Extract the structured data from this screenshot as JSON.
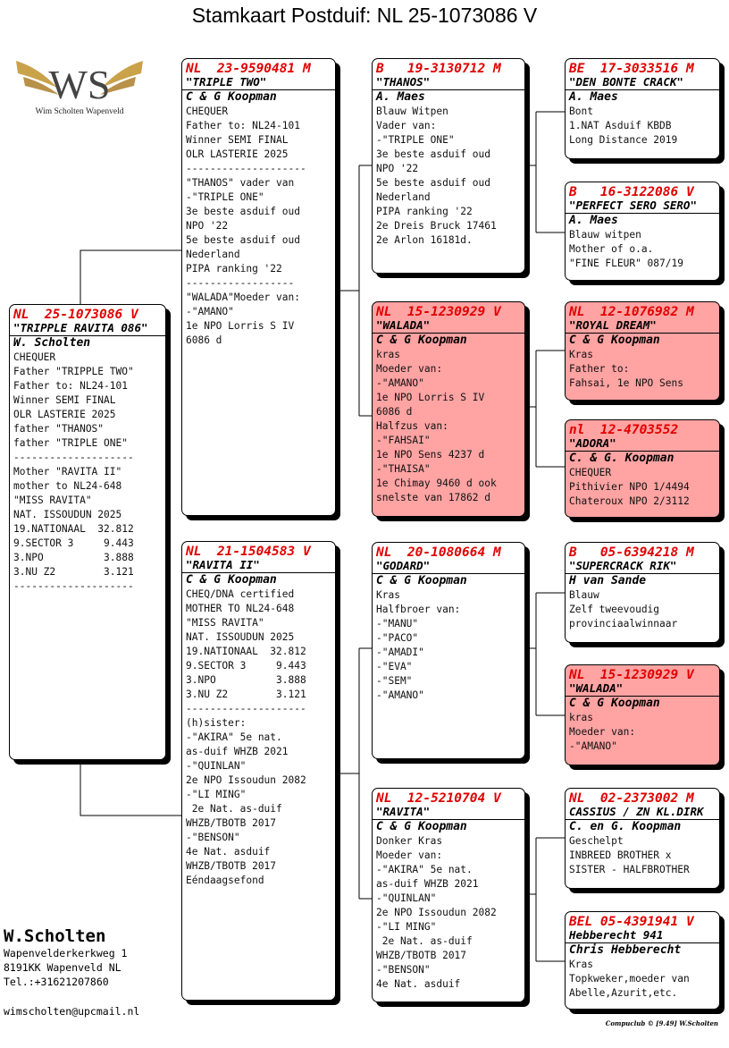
{
  "title": "Stamkaart Postduif: NL  25-1073086 V",
  "logo": {
    "text": "WS",
    "caption": "Wim Scholten Wapenveld",
    "colors": {
      "gold": "#c9a24a",
      "steel": "#555555"
    }
  },
  "owner": {
    "name": "W.Scholten",
    "address": [
      "Wapenvelderkerkweg 1",
      "8191KK  Wapenveld NL",
      "Tel.:+31621207860"
    ],
    "email": "wimscholten@upcmail.nl"
  },
  "footer": "Compuclub © [9.49]  W.Scholten",
  "colors": {
    "ring": "#e00000",
    "highlight": "#ffa3a3"
  },
  "pigeons": [
    {
      "id": "subject",
      "highlight": false,
      "ring": "NL  25-1073086 V",
      "name": "\"TRIPPLE RAVITA 086\"",
      "breeder": "W. Scholten",
      "lines": [
        "CHEQUER",
        "Father \"TRIPPLE TWO\"",
        "Father to: NL24-101",
        "Winner SEMI FINAL",
        "OLR LASTERIE 2025",
        "father \"THANOS\"",
        "father \"TRIPLE ONE\"",
        "--------------------",
        "Mother \"RAVITA II\"",
        "mother to NL24-648",
        "\"MISS RAVITA\"",
        "NAT. ISSOUDUN 2025",
        "19.NATIONAAL  32.812",
        "9.SECTOR 3     9.443",
        "3.NPO          3.888",
        "3.NU Z2        3.121",
        "--------------------"
      ]
    },
    {
      "id": "father",
      "highlight": false,
      "ring": "NL  23-9590481 M",
      "name": "\"TRIPLE TWO\"",
      "breeder": "C & G Koopman",
      "lines": [
        "CHEQUER",
        "Father to: NL24-101",
        "Winner SEMI FINAL",
        "OLR LASTERIE 2025",
        "--------------------",
        "\"THANOS\" vader van",
        "-\"TRIPLE ONE\"",
        "3e beste asduif oud",
        "NPO '22",
        "5e beste asduif oud",
        "Nederland",
        "PIPA ranking '22",
        "------------------",
        "\"WALADA\"Moeder van:",
        "-\"AMANO\"",
        "1e NPO Lorris S IV",
        "6086 d"
      ]
    },
    {
      "id": "mother",
      "highlight": false,
      "ring": "NL  21-1504583 V",
      "name": "\"RAVITA II\"",
      "breeder": "C & G Koopman",
      "lines": [
        "CHEQ/DNA certified",
        "MOTHER TO NL24-648",
        "\"MISS RAVITA\"",
        "NAT. ISSOUDUN 2025",
        "19.NATIONAAL  32.812",
        "9.SECTOR 3     9.443",
        "3.NPO          3.888",
        "3.NU Z2        3.121",
        "--------------------",
        "(h)sister:",
        "-\"AKIRA\" 5e nat.",
        "as-duif WHZB 2021",
        "-\"QUINLAN\"",
        "2e NPO Issoudun 2082",
        "-\"LI MING\"",
        " 2e Nat. as-duif",
        "WHZB/TBOTB 2017",
        "-\"BENSON\"",
        "4e Nat. asduif",
        "WHZB/TBOTB 2017",
        "Eéndaagsefond"
      ]
    },
    {
      "id": "ff",
      "highlight": false,
      "ring": "B   19-3130712 M",
      "name": "\"THANOS\"",
      "breeder": "A. Maes",
      "lines": [
        "Blauw Witpen",
        "Vader van:",
        "-\"TRIPLE ONE\"",
        "3e beste asduif oud",
        "NPO '22",
        "5e beste asduif oud",
        "Nederland",
        "PIPA ranking '22",
        "2e Dreis Bruck 17461",
        "2e Arlon 16181d."
      ]
    },
    {
      "id": "fm",
      "highlight": true,
      "ring": "NL  15-1230929 V",
      "name": "\"WALADA\"",
      "breeder": "C & G Koopman",
      "lines": [
        "kras",
        "Moeder van:",
        "-\"AMANO\"",
        "1e NPO Lorris S IV",
        "6086 d",
        "Halfzus van:",
        "-\"FAHSAI\"",
        "1e NPO Sens 4237 d",
        "-\"THAISA\"",
        "1e Chimay 9460 d ook",
        "snelste van 17862 d"
      ]
    },
    {
      "id": "mf",
      "highlight": false,
      "ring": "NL  20-1080664 M",
      "name": "\"GODARD\"",
      "breeder": "C & G Koopman",
      "lines": [
        "Kras",
        "Halfbroer van:",
        "-\"MANU\"",
        "-\"PACO\"",
        "-\"AMADI\"",
        "-\"EVA\"",
        "-\"SEM\"",
        "-\"AMANO\""
      ]
    },
    {
      "id": "mm",
      "highlight": false,
      "ring": "NL  12-5210704 V",
      "name": "\"RAVITA\"",
      "breeder": "C & G Koopman",
      "lines": [
        "Donker Kras",
        "Moeder van:",
        "-\"AKIRA\" 5e nat.",
        "as-duif WHZB 2021",
        "-\"QUINLAN\"",
        "2e NPO Issoudun 2082",
        "-\"LI MING\"",
        " 2e Nat. as-duif",
        "WHZB/TBOTB 2017",
        "-\"BENSON\"",
        "4e Nat. asduif"
      ]
    },
    {
      "id": "fff",
      "highlight": false,
      "ring": "BE  17-3033516 M",
      "name": "\"DEN BONTE CRACK\"",
      "breeder": "A. Maes",
      "lines": [
        "Bont",
        "1.NAT Asduif KBDB",
        "Long Distance 2019"
      ]
    },
    {
      "id": "ffm",
      "highlight": false,
      "ring": "B   16-3122086 V",
      "name": "\"PERFECT SERO SERO\"",
      "breeder": "A. Maes",
      "lines": [
        "Blauw witpen",
        "Mother of o.a.",
        "\"FINE FLEUR\" 087/19"
      ]
    },
    {
      "id": "fmf",
      "highlight": true,
      "ring": "NL  12-1076982 M",
      "name": "\"ROYAL DREAM\"",
      "breeder": "C & G Koopman",
      "lines": [
        "Kras",
        "Father to:",
        "Fahsai, 1e NPO Sens"
      ]
    },
    {
      "id": "fmm",
      "highlight": true,
      "ring": "nl  12-4703552",
      "name": "\"ADORA\"",
      "breeder": "C. & G. Koopman",
      "lines": [
        "CHEQUER",
        "Pithivier NPO 1/4494",
        "Chateroux NPO 2/3112"
      ]
    },
    {
      "id": "mff",
      "highlight": false,
      "ring": "B   05-6394218 M",
      "name": "\"SUPERCRACK RIK\"",
      "breeder": "H van Sande",
      "lines": [
        "Blauw",
        "Zelf tweevoudig",
        "provinciaalwinnaar"
      ]
    },
    {
      "id": "mfm",
      "highlight": true,
      "ring": "NL  15-1230929 V",
      "name": "\"WALADA\"",
      "breeder": "C & G Koopman",
      "lines": [
        "kras",
        "Moeder van:",
        "-\"AMANO\""
      ]
    },
    {
      "id": "mmf",
      "highlight": false,
      "ring": "NL  02-2373002 M",
      "name": "CASSIUS / ZN KL.DIRK",
      "breeder": "C. en G. Koopman",
      "lines": [
        "Geschelpt",
        "INBREED BROTHER x",
        "SISTER - HALFBROTHER"
      ]
    },
    {
      "id": "mmm",
      "highlight": false,
      "ring": "BEL 05-4391941 V",
      "name": "Hebberecht 941",
      "breeder": "Chris Hebberecht",
      "lines": [
        "Kras",
        "Topkweker,moeder van",
        "Abelle,Azurit,etc."
      ]
    }
  ]
}
